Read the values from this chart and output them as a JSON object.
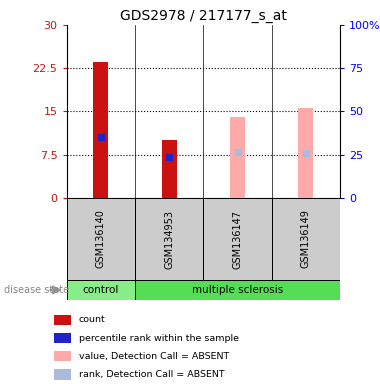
{
  "title": "GDS2978 / 217177_s_at",
  "samples": [
    "GSM136140",
    "GSM134953",
    "GSM136147",
    "GSM136149"
  ],
  "groups": [
    "control",
    "multiple sclerosis",
    "multiple sclerosis",
    "multiple sclerosis"
  ],
  "left_ylim": [
    0,
    30
  ],
  "right_ylim": [
    0,
    100
  ],
  "left_yticks": [
    0,
    7.5,
    15,
    22.5,
    30
  ],
  "right_yticks": [
    0,
    25,
    50,
    75,
    100
  ],
  "left_yticklabels": [
    "0",
    "7.5",
    "15",
    "22.5",
    "30"
  ],
  "right_yticklabels": [
    "0",
    "25",
    "50",
    "75",
    "100%"
  ],
  "bar_dark_red_values": [
    23.5,
    10.0,
    null,
    null
  ],
  "bar_blue_marker_values": [
    10.5,
    7.0,
    null,
    null
  ],
  "bar_pink_values": [
    null,
    null,
    14.0,
    15.5
  ],
  "bar_lightblue_marker_values": [
    null,
    null,
    8.0,
    7.8
  ],
  "dark_red_color": "#cc1111",
  "blue_color": "#2222cc",
  "pink_color": "#ffaaaa",
  "lightblue_color": "#aabbdd",
  "gray_box_color": "#cccccc",
  "control_color": "#88ee88",
  "ms_color": "#55dd55",
  "disease_state_label": "disease state",
  "grid_yticks": [
    7.5,
    15,
    22.5
  ],
  "legend_items": [
    {
      "label": "count",
      "color": "#cc1111"
    },
    {
      "label": "percentile rank within the sample",
      "color": "#2222cc"
    },
    {
      "label": "value, Detection Call = ABSENT",
      "color": "#ffaaaa"
    },
    {
      "label": "rank, Detection Call = ABSENT",
      "color": "#aabbdd"
    }
  ]
}
